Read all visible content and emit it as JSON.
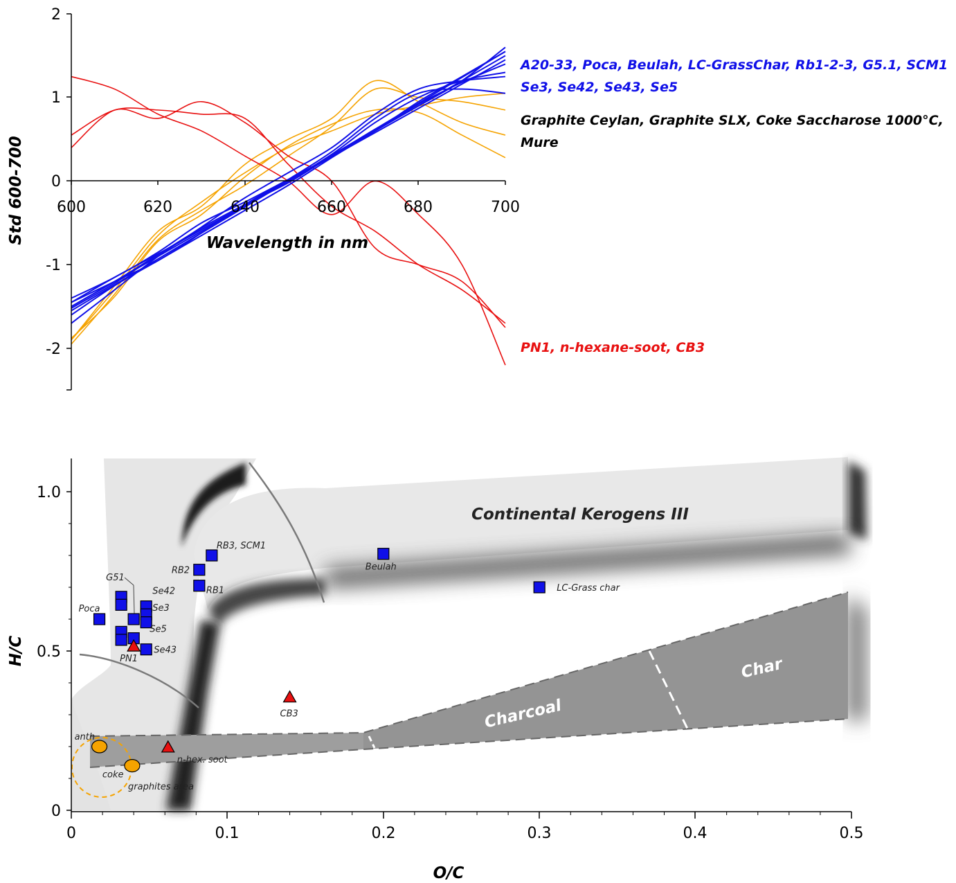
{
  "chart_data": [
    {
      "type": "line",
      "xlabel": "Wavelength in nm",
      "ylabel": "Std 600-700",
      "xlim": [
        600,
        700
      ],
      "ylim": [
        -2.5,
        2
      ],
      "xticks": [
        "600",
        "620",
        "640",
        "660",
        "680",
        "700"
      ],
      "yticks": [
        "-2",
        "-1",
        "0",
        "1",
        "2"
      ],
      "grid": false,
      "legend_placement": "right",
      "legend": [
        {
          "text": "A20-33, Poca, Beulah, LC-GrassChar, Rb1-2-3, G5.1, SCM1",
          "color": "#1010e8"
        },
        {
          "text": "Se3, Se42, Se43, Se5",
          "color": "#1010e8"
        },
        {
          "text": "Graphite Ceylan, Graphite SLX, Coke Saccharose 1000°C,",
          "color": "#000000"
        },
        {
          "text": "Mure",
          "color": "#000000"
        },
        {
          "text": "PN1, n-hexane-soot, CB3",
          "color": "#e81010"
        }
      ],
      "x": [
        600,
        610,
        620,
        630,
        640,
        650,
        660,
        670,
        680,
        690,
        700
      ],
      "series": [
        {
          "group": "blue",
          "color": "#1010e8",
          "values": [
            -1.5,
            -1.2,
            -0.9,
            -0.6,
            -0.3,
            0.0,
            0.3,
            0.6,
            0.9,
            1.2,
            1.5
          ]
        },
        {
          "group": "blue",
          "color": "#1010e8",
          "values": [
            -1.45,
            -1.15,
            -0.87,
            -0.58,
            -0.29,
            0.0,
            0.29,
            0.58,
            0.87,
            1.16,
            1.45
          ]
        },
        {
          "group": "blue",
          "color": "#1010e8",
          "values": [
            -1.55,
            -1.24,
            -0.93,
            -0.62,
            -0.31,
            0.0,
            0.31,
            0.62,
            0.93,
            1.24,
            1.55
          ]
        },
        {
          "group": "blue",
          "color": "#1010e8",
          "values": [
            -1.4,
            -1.15,
            -0.85,
            -0.5,
            -0.25,
            0.02,
            0.3,
            0.62,
            0.9,
            1.2,
            1.6
          ]
        },
        {
          "group": "blue",
          "color": "#1010e8",
          "values": [
            -1.6,
            -1.25,
            -0.95,
            -0.65,
            -0.35,
            -0.05,
            0.28,
            0.6,
            0.95,
            1.25,
            1.55
          ]
        },
        {
          "group": "blue",
          "color": "#1010e8",
          "values": [
            -1.5,
            -1.2,
            -0.88,
            -0.58,
            -0.3,
            0.0,
            0.32,
            0.7,
            1.0,
            1.2,
            1.3
          ]
        },
        {
          "group": "blue",
          "color": "#1010e8",
          "values": [
            -1.7,
            -1.3,
            -0.9,
            -0.55,
            -0.2,
            0.1,
            0.4,
            0.8,
            1.1,
            1.2,
            1.25
          ]
        },
        {
          "group": "blue",
          "color": "#1010e8",
          "values": [
            -1.45,
            -1.2,
            -0.95,
            -0.62,
            -0.28,
            0.02,
            0.35,
            0.75,
            1.05,
            1.1,
            1.05
          ]
        },
        {
          "group": "blue",
          "color": "#1010e8",
          "values": [
            -1.52,
            -1.22,
            -0.88,
            -0.56,
            -0.28,
            -0.02,
            0.3,
            0.6,
            0.92,
            1.18,
            1.4
          ]
        },
        {
          "group": "orange",
          "color": "#f5a300",
          "values": [
            -1.95,
            -1.35,
            -0.7,
            -0.35,
            -0.05,
            0.3,
            0.65,
            1.1,
            1.0,
            0.95,
            0.85
          ]
        },
        {
          "group": "orange",
          "color": "#f5a300",
          "values": [
            -1.9,
            -1.3,
            -0.65,
            -0.25,
            0.1,
            0.4,
            0.6,
            0.8,
            0.9,
            1.0,
            1.05
          ]
        },
        {
          "group": "orange",
          "color": "#f5a300",
          "values": [
            -1.9,
            -1.25,
            -0.6,
            -0.3,
            0.2,
            0.5,
            0.75,
            1.2,
            0.95,
            0.7,
            0.55
          ]
        },
        {
          "group": "orange",
          "color": "#f5a300",
          "values": [
            -1.88,
            -1.38,
            -0.72,
            -0.4,
            0.05,
            0.42,
            0.68,
            0.85,
            0.82,
            0.55,
            0.28
          ]
        },
        {
          "group": "red",
          "color": "#e81010",
          "values": [
            1.25,
            1.1,
            0.8,
            0.6,
            0.3,
            0.0,
            -0.4,
            0.0,
            -0.4,
            -1.0,
            -2.2
          ]
        },
        {
          "group": "red",
          "color": "#e81010",
          "values": [
            0.55,
            0.85,
            0.85,
            0.8,
            0.75,
            0.2,
            -0.3,
            -0.6,
            -1.0,
            -1.3,
            -1.7
          ]
        },
        {
          "group": "red",
          "color": "#e81010",
          "values": [
            0.4,
            0.85,
            0.75,
            0.95,
            0.7,
            0.3,
            0.0,
            -0.8,
            -1.0,
            -1.2,
            -1.75
          ]
        }
      ]
    },
    {
      "type": "scatter",
      "xlabel": "O/C",
      "ylabel": "H/C",
      "xlim": [
        0,
        0.5
      ],
      "ylim": [
        0,
        1.1
      ],
      "xticks": [
        "0",
        "0.1",
        "0.2",
        "0.3",
        "0.4",
        "0.5"
      ],
      "yticks": [
        "0",
        "0.5",
        "1.0"
      ],
      "grid": false,
      "regions": [
        {
          "text": "Continental Kerogens III"
        },
        {
          "text": "Charcoal"
        },
        {
          "text": "Char"
        },
        {
          "text": "graphites area"
        }
      ],
      "series": [
        {
          "group": "char-samples",
          "marker": "square",
          "color": "#1010e8",
          "points": [
            {
              "x": 0.018,
              "y": 0.6,
              "label": "Poca"
            },
            {
              "x": 0.032,
              "y": 0.67,
              "label": ""
            },
            {
              "x": 0.032,
              "y": 0.645,
              "label": ""
            },
            {
              "x": 0.032,
              "y": 0.56,
              "label": ""
            },
            {
              "x": 0.032,
              "y": 0.535,
              "label": ""
            },
            {
              "x": 0.04,
              "y": 0.6,
              "label": "G51"
            },
            {
              "x": 0.04,
              "y": 0.54,
              "label": ""
            },
            {
              "x": 0.048,
              "y": 0.64,
              "label": "Se42"
            },
            {
              "x": 0.048,
              "y": 0.615,
              "label": "Se3"
            },
            {
              "x": 0.048,
              "y": 0.59,
              "label": "Se5"
            },
            {
              "x": 0.048,
              "y": 0.505,
              "label": "Se43"
            },
            {
              "x": 0.082,
              "y": 0.755,
              "label": "RB2"
            },
            {
              "x": 0.082,
              "y": 0.705,
              "label": "RB1"
            },
            {
              "x": 0.09,
              "y": 0.8,
              "label": "RB3, SCM1"
            },
            {
              "x": 0.2,
              "y": 0.805,
              "label": "Beulah"
            },
            {
              "x": 0.3,
              "y": 0.7,
              "label": "LC-Grass char"
            }
          ]
        },
        {
          "group": "soots",
          "marker": "triangle",
          "color": "#e81010",
          "points": [
            {
              "x": 0.04,
              "y": 0.515,
              "label": "PN1",
              "label_color": "#e81010"
            },
            {
              "x": 0.14,
              "y": 0.355,
              "label": "CB3",
              "label_color": "#e81010"
            },
            {
              "x": 0.062,
              "y": 0.198,
              "label": "n-hex. soot",
              "label_color": "#222222"
            }
          ]
        },
        {
          "group": "graphites",
          "marker": "circle",
          "color": "#f5a300",
          "points": [
            {
              "x": 0.018,
              "y": 0.2,
              "label": "anth"
            },
            {
              "x": 0.039,
              "y": 0.14,
              "label": "coke"
            }
          ]
        }
      ]
    }
  ]
}
